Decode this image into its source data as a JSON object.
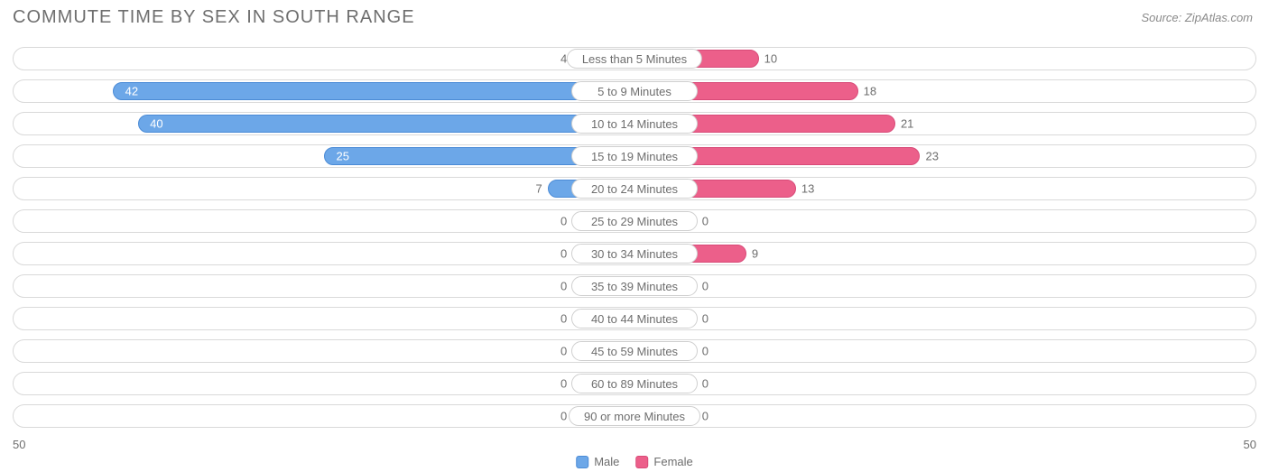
{
  "title": "COMMUTE TIME BY SEX IN SOUTH RANGE",
  "source": "Source: ZipAtlas.com",
  "chart": {
    "type": "diverging-bar",
    "axis_max": 50,
    "axis_left_label": "50",
    "axis_right_label": "50",
    "min_bar_pct": 5.0,
    "track_border_color": "#d9d9d9",
    "track_bg": "#ffffff",
    "colors": {
      "male_fill": "#6ca7e8",
      "male_border": "#4b8bd6",
      "female_fill": "#ec5f8a",
      "female_border": "#d84a78",
      "zero_male_fill": "#a9c7ec",
      "zero_female_fill": "#f4a6c0",
      "text": "#6e6e6e",
      "inside_text": "#ffffff"
    },
    "legend": [
      {
        "label": "Male",
        "fill": "#6ca7e8",
        "border": "#4b8bd6"
      },
      {
        "label": "Female",
        "fill": "#ec5f8a",
        "border": "#d84a78"
      }
    ],
    "rows": [
      {
        "label": "Less than 5 Minutes",
        "male": 4,
        "female": 10
      },
      {
        "label": "5 to 9 Minutes",
        "male": 42,
        "female": 18
      },
      {
        "label": "10 to 14 Minutes",
        "male": 40,
        "female": 21
      },
      {
        "label": "15 to 19 Minutes",
        "male": 25,
        "female": 23
      },
      {
        "label": "20 to 24 Minutes",
        "male": 7,
        "female": 13
      },
      {
        "label": "25 to 29 Minutes",
        "male": 0,
        "female": 0
      },
      {
        "label": "30 to 34 Minutes",
        "male": 0,
        "female": 9
      },
      {
        "label": "35 to 39 Minutes",
        "male": 0,
        "female": 0
      },
      {
        "label": "40 to 44 Minutes",
        "male": 0,
        "female": 0
      },
      {
        "label": "45 to 59 Minutes",
        "male": 0,
        "female": 0
      },
      {
        "label": "60 to 89 Minutes",
        "male": 0,
        "female": 0
      },
      {
        "label": "90 or more Minutes",
        "male": 0,
        "female": 0
      }
    ]
  }
}
